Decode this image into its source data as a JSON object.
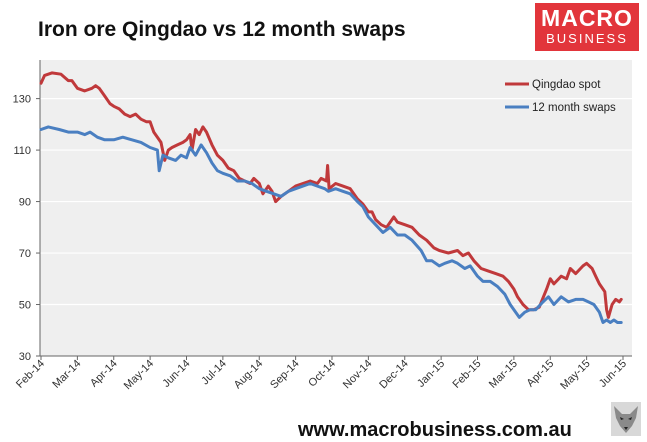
{
  "header": {
    "title": "Iron ore Qingdao vs 12 month swaps"
  },
  "logo": {
    "line1": "MACRO",
    "line2": "BUSINESS",
    "color": "#e2353b",
    "icon": "fox-icon"
  },
  "footer": {
    "url": "www.macrobusiness.com.au"
  },
  "chart_data": {
    "type": "line",
    "title": "Iron ore Qingdao vs 12 month swaps",
    "xlabel": "",
    "ylabel": "",
    "ylim": [
      30,
      145
    ],
    "yticks": [
      30,
      50,
      70,
      90,
      110,
      130
    ],
    "xlim": [
      0,
      16
    ],
    "xticks": [
      {
        "x": 0,
        "label": "Feb-14"
      },
      {
        "x": 1,
        "label": "Mar-14"
      },
      {
        "x": 2,
        "label": "Apr-14"
      },
      {
        "x": 3,
        "label": "May-14"
      },
      {
        "x": 4,
        "label": "Jun-14"
      },
      {
        "x": 5,
        "label": "Jul-14"
      },
      {
        "x": 6,
        "label": "Aug-14"
      },
      {
        "x": 7,
        "label": "Sep-14"
      },
      {
        "x": 8,
        "label": "Oct-14"
      },
      {
        "x": 9,
        "label": "Nov-14"
      },
      {
        "x": 10,
        "label": "Dec-14"
      },
      {
        "x": 11,
        "label": "Jan-15"
      },
      {
        "x": 12,
        "label": "Feb-15"
      },
      {
        "x": 13,
        "label": "Mar-15"
      },
      {
        "x": 14,
        "label": "Apr-15"
      },
      {
        "x": 15,
        "label": "May-15"
      },
      {
        "x": 16,
        "label": "Jun-15"
      }
    ],
    "grid": "horizontal",
    "legend": "top-right",
    "background": "#efefef",
    "series": [
      {
        "name": "Qingdao spot",
        "color": "#c0393b",
        "points": [
          [
            0.0,
            136
          ],
          [
            0.1,
            139
          ],
          [
            0.3,
            140
          ],
          [
            0.55,
            139.5
          ],
          [
            0.75,
            137
          ],
          [
            0.85,
            137
          ],
          [
            1.0,
            134
          ],
          [
            1.2,
            133
          ],
          [
            1.4,
            134
          ],
          [
            1.5,
            135
          ],
          [
            1.6,
            134
          ],
          [
            1.75,
            131
          ],
          [
            1.9,
            128
          ],
          [
            2.0,
            127
          ],
          [
            2.15,
            126
          ],
          [
            2.3,
            124
          ],
          [
            2.45,
            123
          ],
          [
            2.6,
            124
          ],
          [
            2.75,
            122
          ],
          [
            2.9,
            121
          ],
          [
            3.0,
            121
          ],
          [
            3.1,
            117
          ],
          [
            3.2,
            115
          ],
          [
            3.3,
            113
          ],
          [
            3.4,
            106
          ],
          [
            3.5,
            110
          ],
          [
            3.6,
            111
          ],
          [
            3.75,
            112
          ],
          [
            3.9,
            113
          ],
          [
            4.0,
            114
          ],
          [
            4.1,
            116
          ],
          [
            4.15,
            110
          ],
          [
            4.25,
            118
          ],
          [
            4.35,
            116
          ],
          [
            4.45,
            119
          ],
          [
            4.55,
            117
          ],
          [
            4.7,
            112
          ],
          [
            4.85,
            108
          ],
          [
            5.0,
            106
          ],
          [
            5.15,
            103
          ],
          [
            5.3,
            102
          ],
          [
            5.45,
            99
          ],
          [
            5.6,
            98
          ],
          [
            5.75,
            97
          ],
          [
            5.85,
            99
          ],
          [
            6.0,
            97
          ],
          [
            6.1,
            93
          ],
          [
            6.25,
            96
          ],
          [
            6.35,
            94
          ],
          [
            6.45,
            90
          ],
          [
            6.6,
            92
          ],
          [
            6.8,
            94
          ],
          [
            7.0,
            96
          ],
          [
            7.2,
            97
          ],
          [
            7.4,
            98
          ],
          [
            7.6,
            97
          ],
          [
            7.7,
            99
          ],
          [
            7.85,
            98
          ],
          [
            7.88,
            104
          ],
          [
            7.92,
            95
          ],
          [
            8.1,
            97
          ],
          [
            8.3,
            96
          ],
          [
            8.5,
            95
          ],
          [
            8.7,
            91
          ],
          [
            8.85,
            89
          ],
          [
            9.0,
            86
          ],
          [
            9.1,
            86
          ],
          [
            9.2,
            83
          ],
          [
            9.35,
            81
          ],
          [
            9.5,
            80
          ],
          [
            9.7,
            84
          ],
          [
            9.8,
            82
          ],
          [
            10.0,
            81
          ],
          [
            10.2,
            80
          ],
          [
            10.4,
            77
          ],
          [
            10.6,
            75
          ],
          [
            10.8,
            72
          ],
          [
            10.95,
            71
          ],
          [
            11.2,
            70
          ],
          [
            11.45,
            71
          ],
          [
            11.6,
            69
          ],
          [
            11.75,
            70
          ],
          [
            11.9,
            67
          ],
          [
            12.1,
            64
          ],
          [
            12.3,
            63
          ],
          [
            12.5,
            62
          ],
          [
            12.7,
            61
          ],
          [
            12.85,
            59
          ],
          [
            13.0,
            56
          ],
          [
            13.1,
            53
          ],
          [
            13.25,
            50
          ],
          [
            13.4,
            48
          ],
          [
            13.55,
            48
          ],
          [
            13.7,
            49
          ],
          [
            13.9,
            56
          ],
          [
            14.0,
            60
          ],
          [
            14.1,
            58
          ],
          [
            14.3,
            61
          ],
          [
            14.45,
            60
          ],
          [
            14.55,
            64
          ],
          [
            14.7,
            62
          ],
          [
            14.9,
            65
          ],
          [
            15.0,
            66
          ],
          [
            15.15,
            64
          ],
          [
            15.25,
            61
          ],
          [
            15.35,
            58
          ],
          [
            15.5,
            55
          ],
          [
            15.55,
            48
          ],
          [
            15.6,
            45
          ],
          [
            15.7,
            50
          ],
          [
            15.8,
            52
          ],
          [
            15.9,
            51
          ],
          [
            15.95,
            52
          ]
        ]
      },
      {
        "name": "12 month swaps",
        "color": "#4a7fc1",
        "points": [
          [
            0.0,
            118
          ],
          [
            0.2,
            119
          ],
          [
            0.5,
            118
          ],
          [
            0.75,
            117
          ],
          [
            1.0,
            117
          ],
          [
            1.2,
            116
          ],
          [
            1.35,
            117
          ],
          [
            1.55,
            115
          ],
          [
            1.75,
            114
          ],
          [
            2.0,
            114
          ],
          [
            2.25,
            115
          ],
          [
            2.5,
            114
          ],
          [
            2.75,
            113
          ],
          [
            3.0,
            111
          ],
          [
            3.2,
            110
          ],
          [
            3.25,
            102
          ],
          [
            3.35,
            108
          ],
          [
            3.5,
            107
          ],
          [
            3.7,
            106
          ],
          [
            3.85,
            108
          ],
          [
            4.0,
            107
          ],
          [
            4.1,
            111
          ],
          [
            4.25,
            108
          ],
          [
            4.4,
            112
          ],
          [
            4.55,
            109
          ],
          [
            4.7,
            105
          ],
          [
            4.85,
            102
          ],
          [
            5.0,
            101
          ],
          [
            5.2,
            100
          ],
          [
            5.4,
            98
          ],
          [
            5.6,
            98
          ],
          [
            5.8,
            97
          ],
          [
            6.0,
            95
          ],
          [
            6.2,
            94
          ],
          [
            6.4,
            93
          ],
          [
            6.6,
            92
          ],
          [
            6.8,
            94
          ],
          [
            7.0,
            95
          ],
          [
            7.2,
            96
          ],
          [
            7.4,
            97
          ],
          [
            7.6,
            96
          ],
          [
            7.8,
            95
          ],
          [
            7.9,
            94
          ],
          [
            8.1,
            95
          ],
          [
            8.3,
            94
          ],
          [
            8.5,
            93
          ],
          [
            8.7,
            90
          ],
          [
            8.85,
            88
          ],
          [
            9.0,
            84
          ],
          [
            9.2,
            81
          ],
          [
            9.4,
            78
          ],
          [
            9.6,
            80
          ],
          [
            9.8,
            77
          ],
          [
            10.0,
            77
          ],
          [
            10.2,
            75
          ],
          [
            10.45,
            71
          ],
          [
            10.6,
            67
          ],
          [
            10.75,
            67
          ],
          [
            10.95,
            65
          ],
          [
            11.1,
            66
          ],
          [
            11.3,
            67
          ],
          [
            11.45,
            66
          ],
          [
            11.65,
            64
          ],
          [
            11.8,
            65
          ],
          [
            12.0,
            61
          ],
          [
            12.15,
            59
          ],
          [
            12.35,
            59
          ],
          [
            12.55,
            57
          ],
          [
            12.75,
            54
          ],
          [
            12.9,
            50
          ],
          [
            13.0,
            48
          ],
          [
            13.15,
            45
          ],
          [
            13.3,
            47
          ],
          [
            13.45,
            48
          ],
          [
            13.6,
            48
          ],
          [
            13.8,
            51
          ],
          [
            13.95,
            53
          ],
          [
            14.1,
            50
          ],
          [
            14.3,
            53
          ],
          [
            14.5,
            51
          ],
          [
            14.7,
            52
          ],
          [
            14.9,
            52
          ],
          [
            15.05,
            51
          ],
          [
            15.2,
            50
          ],
          [
            15.35,
            47
          ],
          [
            15.45,
            43
          ],
          [
            15.55,
            44
          ],
          [
            15.65,
            43
          ],
          [
            15.75,
            44
          ],
          [
            15.85,
            43
          ],
          [
            15.95,
            43
          ]
        ]
      }
    ]
  }
}
